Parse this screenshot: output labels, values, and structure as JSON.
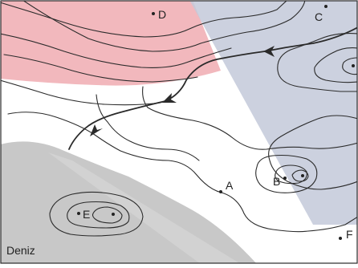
{
  "map": {
    "points": [
      {
        "id": "A",
        "label": "A"
      },
      {
        "id": "B",
        "label": "B"
      },
      {
        "id": "C",
        "label": "C"
      },
      {
        "id": "D",
        "label": "D"
      },
      {
        "id": "E",
        "label": "E"
      },
      {
        "id": "F",
        "label": "F"
      }
    ],
    "sea_label": "Deniz",
    "colors": {
      "pink_zone": "#f2b8bd",
      "blue_zone": "#c3c9d9",
      "sea": "#c8c8c8",
      "contour": "#2a2a2a"
    }
  }
}
